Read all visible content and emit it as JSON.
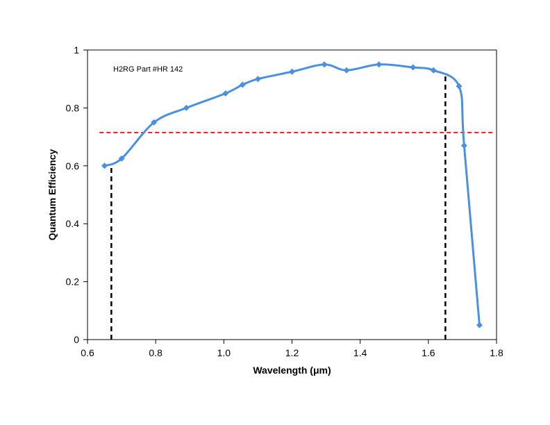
{
  "chart_data": {
    "type": "line",
    "title": "",
    "xlabel": "Wavelength (μm)",
    "ylabel": "Quantum  Efficiency",
    "xlim": [
      0.6,
      1.8
    ],
    "ylim": [
      0,
      1
    ],
    "xticks": [
      0.6,
      0.8,
      1.0,
      1.2,
      1.4,
      1.6,
      1.8
    ],
    "xtick_labels": [
      "0.6",
      "0.8",
      "1.0",
      "1.2",
      "1.4",
      "1.6",
      "1.8"
    ],
    "yticks": [
      0,
      0.2,
      0.4,
      0.6,
      0.8,
      1
    ],
    "ytick_labels": [
      "0",
      "0.2",
      "0.4",
      "0.6",
      "0.8",
      "1"
    ],
    "grid": false,
    "legend": "none",
    "annotation": "H2RG Part  #HR 142",
    "series": [
      {
        "color": "#4a8fe0",
        "marker": "diamond",
        "smooth": true,
        "x": [
          0.65,
          0.7,
          0.795,
          0.89,
          1.005,
          1.055,
          1.1,
          1.2,
          1.295,
          1.36,
          1.455,
          1.555,
          1.615,
          1.69,
          1.705,
          1.75
        ],
        "y": [
          0.6,
          0.625,
          0.75,
          0.8,
          0.85,
          0.88,
          0.9,
          0.925,
          0.95,
          0.93,
          0.95,
          0.94,
          0.93,
          0.875,
          0.67,
          0.05
        ]
      }
    ],
    "reference_lines": [
      {
        "orientation": "horizontal",
        "y": 0.715,
        "x_from": 0.635,
        "x_to": 1.8,
        "color": "#e02020",
        "style": "dashed"
      },
      {
        "orientation": "vertical",
        "x": 0.67,
        "y_from": 0,
        "y_to": 0.6,
        "color": "#000000",
        "style": "dashed"
      },
      {
        "orientation": "vertical",
        "x": 1.65,
        "y_from": 0,
        "y_to": 0.915,
        "color": "#000000",
        "style": "dashed"
      }
    ]
  }
}
